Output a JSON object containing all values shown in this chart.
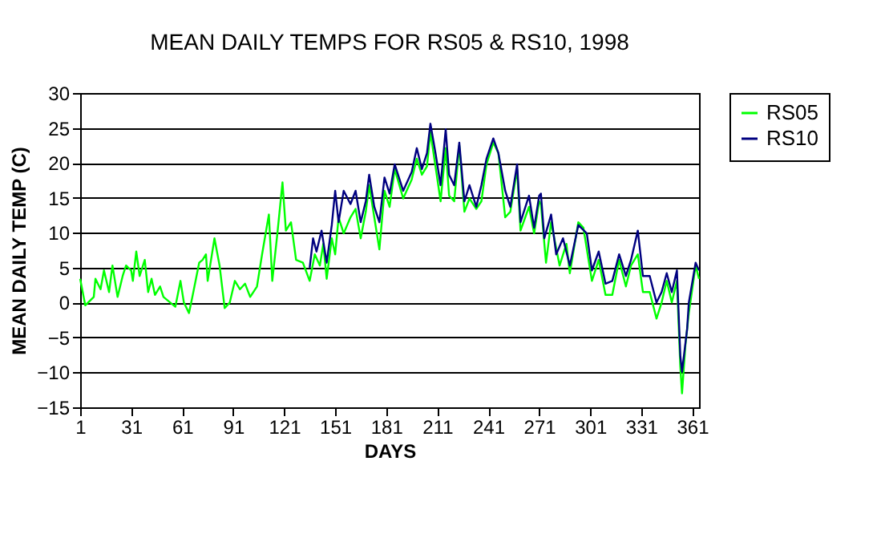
{
  "chart_data": {
    "type": "line",
    "title": "MEAN DAILY TEMPS FOR RS05 & RS10, 1998",
    "xlabel": "DAYS",
    "ylabel": "MEAN DAILY TEMP (C)",
    "xlim": [
      1,
      365
    ],
    "xticks": [
      1,
      31,
      61,
      91,
      121,
      151,
      181,
      211,
      241,
      271,
      301,
      331,
      361
    ],
    "ylim": [
      -15,
      30
    ],
    "yticks": [
      -15,
      -10,
      -5,
      0,
      5,
      10,
      15,
      20,
      25,
      30
    ],
    "grid": "y",
    "legend": "right",
    "marker": "none",
    "line_style": "solid",
    "series": [
      {
        "name": "RS05",
        "color": "#00ff00",
        "x": [
          1,
          4,
          9,
          10,
          13,
          15,
          18,
          20,
          23,
          26,
          28,
          31,
          32,
          34,
          36,
          39,
          41,
          43,
          45,
          48,
          50,
          54,
          57,
          60,
          62,
          65,
          67,
          71,
          73,
          75,
          76,
          80,
          83,
          86,
          89,
          92,
          95,
          98,
          101,
          105,
          108,
          112,
          114,
          117,
          120,
          122,
          125,
          128,
          132,
          136,
          139,
          142,
          144,
          146,
          149,
          151,
          153,
          156,
          160,
          163,
          166,
          169,
          171,
          174,
          177,
          180,
          183,
          186,
          191,
          196,
          199,
          202,
          205,
          207,
          210,
          213,
          216,
          218,
          221,
          224,
          227,
          230,
          234,
          237,
          240,
          244,
          247,
          251,
          254,
          258,
          260,
          265,
          268,
          271,
          272,
          275,
          278,
          283,
          287,
          289,
          294,
          297,
          302,
          306,
          310,
          314,
          318,
          322,
          325,
          329,
          332,
          336,
          340,
          343,
          346,
          349,
          352,
          354,
          355,
          357,
          359,
          363,
          365
        ],
        "values": [
          3.4,
          -0.4,
          0.8,
          3.4,
          1.9,
          4.6,
          1.5,
          5.3,
          0.8,
          3.8,
          5.3,
          4.6,
          3.1,
          7.3,
          3.8,
          6.1,
          1.5,
          3.4,
          1.1,
          2.3,
          0.8,
          0,
          -0.6,
          3.1,
          0,
          -1.5,
          0.8,
          5.7,
          6.1,
          6.9,
          3.1,
          9.2,
          5.3,
          -0.8,
          0,
          3.1,
          1.9,
          2.7,
          0.8,
          2.3,
          6.9,
          12.6,
          3.1,
          9.9,
          17.2,
          10.3,
          11.5,
          6.1,
          5.7,
          3.1,
          6.9,
          5.3,
          8.4,
          3.4,
          9.2,
          6.9,
          12.2,
          9.9,
          12.2,
          13.4,
          9.2,
          13,
          16.8,
          12.2,
          7.6,
          16,
          13.7,
          19.1,
          14.9,
          17.6,
          20.6,
          18.3,
          19.5,
          24.4,
          19.5,
          14.5,
          22.1,
          15.3,
          14.5,
          22.5,
          13,
          14.9,
          13.4,
          14.5,
          19.8,
          22.9,
          21.4,
          12.2,
          13,
          19.1,
          10.3,
          13.7,
          9.9,
          14.5,
          14.1,
          5.7,
          11.5,
          5.3,
          8.4,
          4.2,
          11.5,
          10.7,
          3.1,
          6.1,
          1.1,
          1.1,
          6.1,
          2.3,
          5.3,
          6.9,
          1.5,
          1.5,
          -2.3,
          0,
          3.1,
          0,
          3.1,
          -9.2,
          -13,
          -6.1,
          -1.5,
          5.3,
          3.4
        ]
      },
      {
        "name": "RS10",
        "color": "#000080",
        "x": [
          136,
          138,
          140,
          143,
          146,
          149,
          151,
          153,
          156,
          160,
          163,
          166,
          169,
          171,
          174,
          177,
          180,
          183,
          186,
          191,
          196,
          199,
          202,
          205,
          207,
          210,
          213,
          216,
          218,
          221,
          224,
          227,
          230,
          234,
          237,
          240,
          244,
          247,
          251,
          254,
          258,
          260,
          265,
          268,
          271,
          272,
          274,
          278,
          281,
          285,
          289,
          294,
          299,
          302,
          306,
          310,
          314,
          318,
          322,
          325,
          329,
          332,
          336,
          340,
          343,
          346,
          349,
          352,
          354,
          355,
          358,
          359,
          363,
          365
        ],
        "values": [
          5.0,
          9.2,
          7.3,
          10.3,
          5.7,
          11.1,
          16,
          11.5,
          16,
          14.1,
          16,
          11.5,
          14.5,
          18.3,
          13.7,
          11.5,
          17.9,
          15.6,
          19.8,
          16,
          18.7,
          22.1,
          19.1,
          21.4,
          25.6,
          21.4,
          16.8,
          24.8,
          18.3,
          16.8,
          22.9,
          14.5,
          16.8,
          13.7,
          16.8,
          20.6,
          23.5,
          21.4,
          16,
          13.7,
          19.8,
          11.5,
          15.3,
          10.7,
          15.3,
          15.6,
          9.2,
          12.6,
          6.9,
          9.2,
          5.3,
          11.1,
          9.9,
          4.6,
          7.3,
          2.7,
          3.1,
          6.9,
          3.8,
          6.1,
          10.3,
          3.8,
          3.8,
          0,
          1.5,
          4.2,
          1.5,
          4.6,
          -7.6,
          -9.9,
          -3.8,
          0,
          5.7,
          4.6
        ]
      }
    ]
  }
}
